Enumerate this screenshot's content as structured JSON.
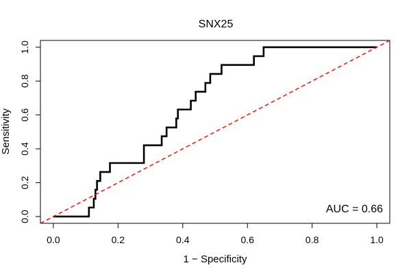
{
  "chart_data": {
    "type": "line",
    "title": "SNX25",
    "xlabel": "1 − Specificity",
    "ylabel": "Sensitivity",
    "xlim": [
      -0.04,
      1.04
    ],
    "ylim": [
      -0.04,
      1.04
    ],
    "x_ticks": [
      0.0,
      0.2,
      0.4,
      0.6,
      0.8,
      1.0
    ],
    "x_tick_labels": [
      "0.0",
      "0.2",
      "0.4",
      "0.6",
      "0.8",
      "1.0"
    ],
    "y_ticks": [
      0.0,
      0.2,
      0.4,
      0.6,
      0.8,
      1.0
    ],
    "y_tick_labels": [
      "0.0",
      "0.2",
      "0.4",
      "0.6",
      "0.8",
      "1.0"
    ],
    "grid": false,
    "annotation": "AUC = 0.66",
    "annotation_position": "bottom-right",
    "series": [
      {
        "color": "#000000",
        "style": "solid step",
        "x": [
          0.0,
          0.11,
          0.11,
          0.125,
          0.125,
          0.13,
          0.13,
          0.135,
          0.135,
          0.145,
          0.145,
          0.175,
          0.175,
          0.28,
          0.28,
          0.335,
          0.335,
          0.35,
          0.35,
          0.38,
          0.38,
          0.385,
          0.385,
          0.41,
          0.41,
          0.425,
          0.425,
          0.44,
          0.44,
          0.47,
          0.47,
          0.485,
          0.485,
          0.5,
          0.5,
          0.52,
          0.52,
          0.62,
          0.62,
          0.65,
          0.65,
          1.0
        ],
        "y": [
          0.0,
          0.0,
          0.053,
          0.053,
          0.105,
          0.105,
          0.158,
          0.158,
          0.21,
          0.21,
          0.263,
          0.263,
          0.316,
          0.316,
          0.421,
          0.421,
          0.474,
          0.474,
          0.526,
          0.526,
          0.579,
          0.579,
          0.632,
          0.632,
          0.632,
          0.632,
          0.684,
          0.684,
          0.737,
          0.737,
          0.789,
          0.789,
          0.842,
          0.842,
          0.842,
          0.842,
          0.895,
          0.895,
          0.947,
          0.947,
          1.0,
          1.0
        ]
      },
      {
        "color": "#ff0000",
        "style": "dashed",
        "x": [
          -0.04,
          1.04
        ],
        "y": [
          -0.04,
          1.04
        ]
      }
    ]
  }
}
